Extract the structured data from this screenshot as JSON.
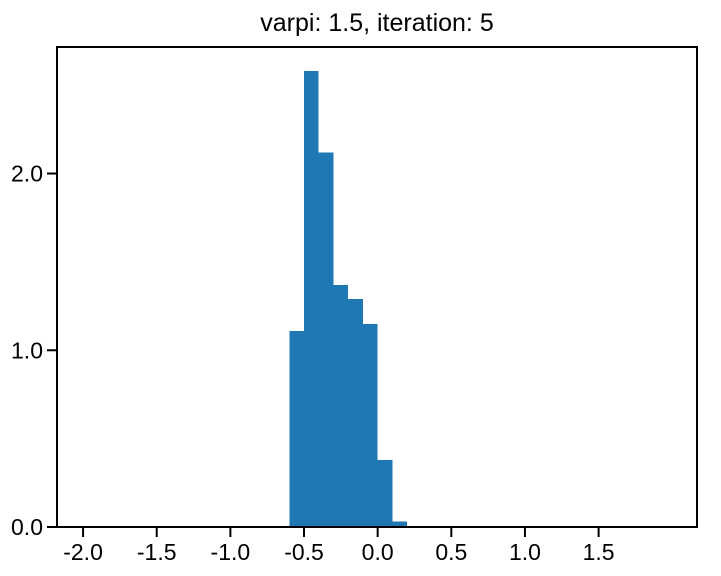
{
  "chart_data": {
    "type": "bar",
    "subtype": "histogram-density",
    "title": "varpi: 1.5, iteration: 5",
    "xlabel": "",
    "ylabel": "",
    "bar_color": "#1f77b4",
    "axis_color": "#000000",
    "background_color": "#ffffff",
    "bin_edges": [
      -0.6,
      -0.5,
      -0.4,
      -0.3,
      -0.2,
      -0.1,
      0.0,
      0.1,
      0.2
    ],
    "values": [
      1.11,
      2.58,
      2.12,
      1.37,
      1.29,
      1.15,
      0.38,
      0.03
    ],
    "xlim": [
      -2.177,
      2.168
    ],
    "ylim": [
      0,
      2.716
    ],
    "x_ticks": [
      -2.0,
      -1.5,
      -1.0,
      -0.5,
      0.0,
      0.5,
      1.0,
      1.5
    ],
    "x_tick_labels": [
      "-2.0",
      "-1.5",
      "-1.0",
      "-0.5",
      "0.0",
      "0.5",
      "1.0",
      "1.5"
    ],
    "y_ticks": [
      0,
      1,
      2
    ],
    "y_tick_labels": [
      "0.0",
      "1.0",
      "2.0"
    ],
    "grid": false,
    "legend": false
  }
}
